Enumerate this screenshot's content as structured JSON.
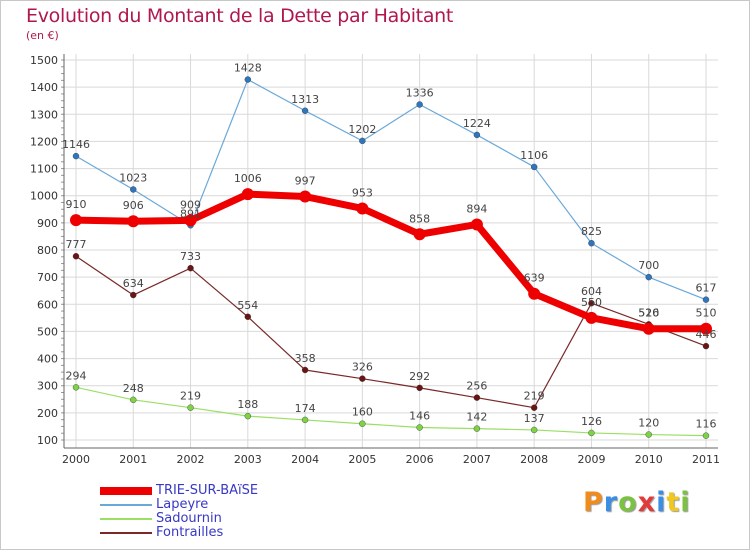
{
  "title": "Evolution du Montant de la Dette par Habitant",
  "subtitle": "(en €)",
  "logo": {
    "text": "Proxiti",
    "letter_colors": [
      "#f08c1e",
      "#3a8ee6",
      "#7cc242",
      "#e23a3a",
      "#3a8ee6",
      "#f0c81e",
      "#7cc242"
    ]
  },
  "colors": {
    "grid": "#d9d9d9",
    "axis": "#666666",
    "value_label": "#444444",
    "legend_text": "#3838c8"
  },
  "chart_data": {
    "type": "line",
    "x": [
      "2000",
      "2001",
      "2002",
      "2003",
      "2004",
      "2005",
      "2006",
      "2007",
      "2008",
      "2009",
      "2010",
      "2011"
    ],
    "y_ticks": [
      "100",
      "200",
      "300",
      "400",
      "500",
      "600",
      "700",
      "800",
      "900",
      "1000",
      "1100",
      "1200",
      "1300",
      "1400",
      "1500"
    ],
    "ylim": [
      100,
      1500
    ],
    "grid": true,
    "legend_position": "bottom-left",
    "series": [
      {
        "name": "TRIE-SUR-BAïSE",
        "color": "#ee0000",
        "marker": "#ee0000",
        "width": 7,
        "values": [
          910,
          906,
          909,
          1006,
          997,
          953,
          858,
          894,
          639,
          550,
          510,
          510
        ]
      },
      {
        "name": "Lapeyre",
        "color": "#6aa8d8",
        "marker": "#2e77c0",
        "width": 1.2,
        "values": [
          1146,
          1023,
          891,
          1428,
          1313,
          1202,
          1336,
          1224,
          1106,
          825,
          700,
          617
        ]
      },
      {
        "name": "Sadournin",
        "color": "#9adf64",
        "marker": "#7cd445",
        "width": 1.2,
        "values": [
          294,
          248,
          219,
          188,
          174,
          160,
          146,
          142,
          137,
          126,
          120,
          116
        ]
      },
      {
        "name": "Fontrailles",
        "color": "#7a2828",
        "marker": "#6b1414",
        "width": 1.2,
        "values": [
          777,
          634,
          733,
          554,
          358,
          326,
          292,
          256,
          219,
          604,
          526,
          446
        ]
      }
    ],
    "value_labels": [
      {
        "series": 0,
        "values": [
          "910",
          "906",
          "909",
          "1006",
          "997",
          "953",
          "858",
          "894",
          "639",
          "550",
          "510",
          "510"
        ]
      },
      {
        "series": 1,
        "values": [
          "1146",
          "1023",
          "891",
          "1428",
          "1313",
          "1202",
          "1336",
          "1224",
          "1106",
          "825",
          "700",
          "617"
        ]
      },
      {
        "series": 2,
        "values": [
          "294",
          "248",
          "219",
          "188",
          "174",
          "160",
          "146",
          "142",
          "137",
          "126",
          "120",
          "116"
        ]
      },
      {
        "series": 3,
        "values": [
          "777",
          "634",
          "733",
          "554",
          "358",
          "326",
          "292",
          "256",
          "219",
          "604",
          "526",
          "446"
        ]
      }
    ]
  }
}
